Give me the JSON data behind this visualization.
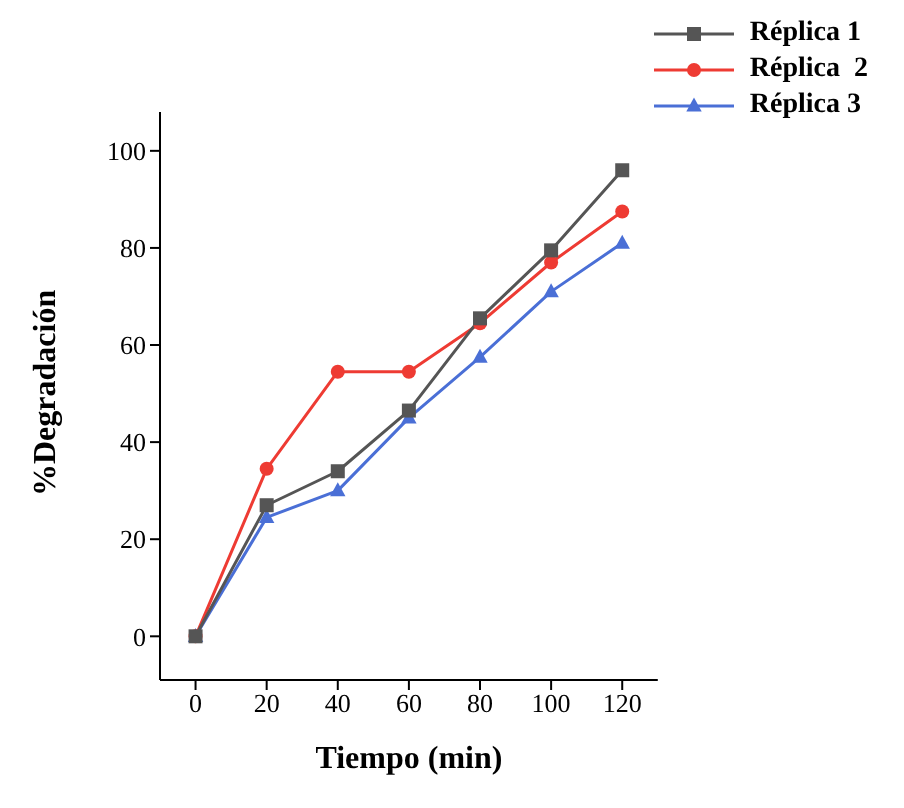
{
  "chart_data": {
    "type": "line",
    "xlabel": "Tiempo (min)",
    "ylabel": "%Degradación",
    "x": [
      0,
      20,
      40,
      60,
      80,
      100,
      120
    ],
    "series": [
      {
        "name": "Réplica 1",
        "color": "#555555",
        "marker": "square",
        "values": [
          0,
          27,
          34,
          46.5,
          65.5,
          79.5,
          96
        ]
      },
      {
        "name": "Réplica  2",
        "color": "#ee3b33",
        "marker": "circle",
        "values": [
          0,
          34.5,
          54.5,
          54.5,
          64.5,
          77,
          87.5
        ]
      },
      {
        "name": "Réplica 3",
        "color": "#4a6fd6",
        "marker": "triangle",
        "values": [
          0,
          24.5,
          30,
          45,
          57.5,
          71,
          81
        ]
      }
    ],
    "xlim": [
      -10,
      130
    ],
    "xticks": [
      0,
      20,
      40,
      60,
      80,
      100,
      120
    ],
    "ylim": [
      -9,
      108
    ],
    "yticks": [
      0,
      20,
      40,
      60,
      80,
      100
    ],
    "grid": false,
    "legend": "top right",
    "line_style": "solid"
  }
}
